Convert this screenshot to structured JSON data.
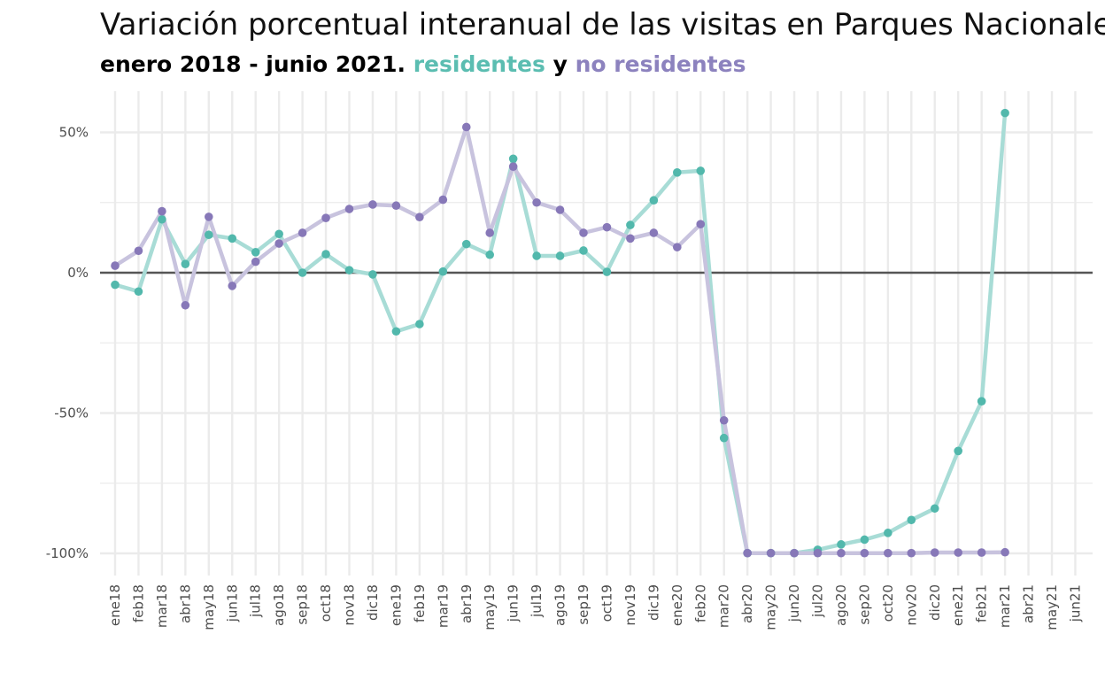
{
  "title": "Variación porcentual interanual de las visitas en Parques Nacionales",
  "subtitle": {
    "part1": "enero 2018 - junio 2021.",
    "residentes": "residentes",
    "conj": "y",
    "no_residentes": "no residentes"
  },
  "colors": {
    "residentes": "#52b8ac",
    "no_residentes": "#8778b8",
    "residentes_line": "#a8dcd6",
    "no_residentes_line": "#c8c3de",
    "zero_line": "#555555",
    "grid": "#ebebeb"
  },
  "chart_data": {
    "type": "line",
    "title": "Variación porcentual interanual de las visitas en Parques Nacionales",
    "subtitle": "enero 2018 - junio 2021. residentes y no residentes",
    "xlabel": "",
    "ylabel": "",
    "ylim": [
      -107,
      65
    ],
    "yticks": [
      50,
      0,
      -50,
      -100
    ],
    "ytick_labels": [
      "50%",
      "0%",
      "-50%",
      "-100%"
    ],
    "grid": true,
    "categories": [
      "ene18",
      "feb18",
      "mar18",
      "abr18",
      "may18",
      "jun18",
      "jul18",
      "ago18",
      "sep18",
      "oct18",
      "nov18",
      "dic18",
      "ene19",
      "feb19",
      "mar19",
      "abr19",
      "may19",
      "jun19",
      "jul19",
      "ago19",
      "sep19",
      "oct19",
      "nov19",
      "dic19",
      "ene20",
      "feb20",
      "mar20",
      "abr20",
      "may20",
      "jun20",
      "jul20",
      "ago20",
      "sep20",
      "oct20",
      "nov20",
      "dic20",
      "ene21",
      "feb21",
      "mar21",
      "abr21",
      "may21",
      "jun21"
    ],
    "series": [
      {
        "name": "residentes",
        "color": "#52b8ac",
        "values": [
          -4.3,
          -6.7,
          19.0,
          3.1,
          13.5,
          12.2,
          7.3,
          13.8,
          0.0,
          6.6,
          0.9,
          -0.6,
          -20.9,
          -18.3,
          0.4,
          10.2,
          6.4,
          40.6,
          6.0,
          6.0,
          7.9,
          0.3,
          17.0,
          25.8,
          35.7,
          36.3,
          -58.9,
          -99.9,
          -99.9,
          -99.9,
          -98.7,
          -96.8,
          -95.1,
          -92.7,
          -88.1,
          -84.0,
          -63.5,
          -45.8,
          56.9,
          null,
          null,
          null
        ]
      },
      {
        "name": "no residentes",
        "color": "#8778b8",
        "values": [
          2.5,
          7.8,
          21.9,
          -11.6,
          19.9,
          -4.7,
          3.9,
          10.4,
          14.2,
          19.5,
          22.7,
          24.3,
          23.9,
          19.8,
          26.0,
          51.9,
          14.2,
          37.8,
          25.0,
          22.4,
          14.2,
          16.2,
          12.2,
          14.2,
          9.1,
          17.3,
          -52.6,
          -99.9,
          -99.9,
          -99.9,
          -99.9,
          -99.9,
          -99.9,
          -99.9,
          -99.9,
          -99.7,
          -99.7,
          -99.7,
          -99.6,
          null,
          null,
          null
        ]
      }
    ]
  }
}
